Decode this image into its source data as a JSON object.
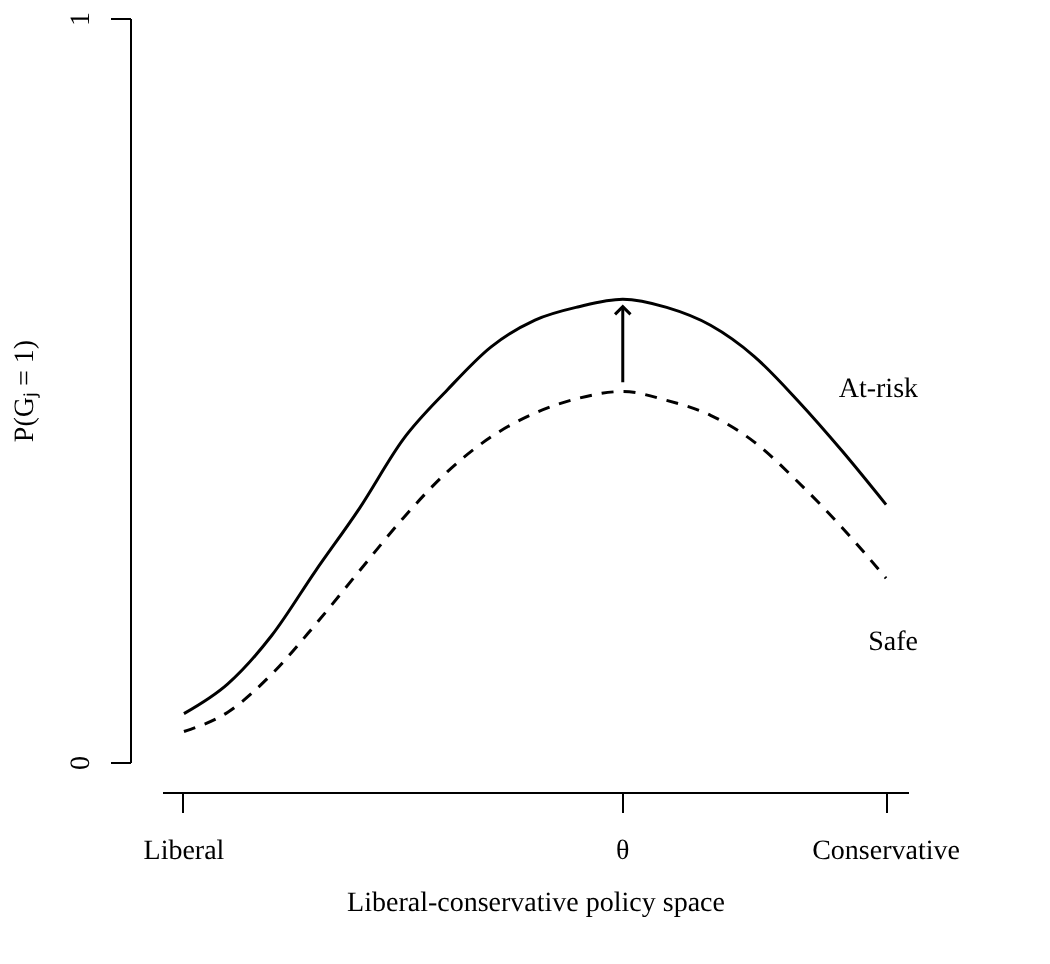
{
  "chart_data": {
    "type": "line",
    "xlabel": "Liberal-conservative policy space",
    "ylabel": "P(Gⱼ = 1)",
    "categories": [
      "Liberal",
      null,
      null,
      null,
      null,
      null,
      null,
      null,
      null,
      null,
      "θ",
      null,
      null,
      null,
      null,
      null,
      "Conservative"
    ],
    "ylim": [
      0,
      1
    ],
    "yticks": [
      0,
      1
    ],
    "grid": false,
    "legend": false,
    "marker": "none",
    "series": [
      {
        "name": "At-risk",
        "color": "#000000",
        "line_style": "solid",
        "values": [
          0.065,
          0.105,
          0.17,
          0.257,
          0.341,
          0.434,
          0.5,
          0.558,
          0.594,
          0.612,
          0.622,
          0.611,
          0.587,
          0.545,
          0.485,
          0.418,
          0.346
        ]
      },
      {
        "name": "Safe",
        "color": "#000000",
        "line_style": "dashed",
        "values": [
          0.041,
          0.067,
          0.118,
          0.185,
          0.257,
          0.328,
          0.39,
          0.437,
          0.469,
          0.489,
          0.498,
          0.486,
          0.466,
          0.43,
          0.376,
          0.315,
          0.247
        ]
      }
    ]
  }
}
